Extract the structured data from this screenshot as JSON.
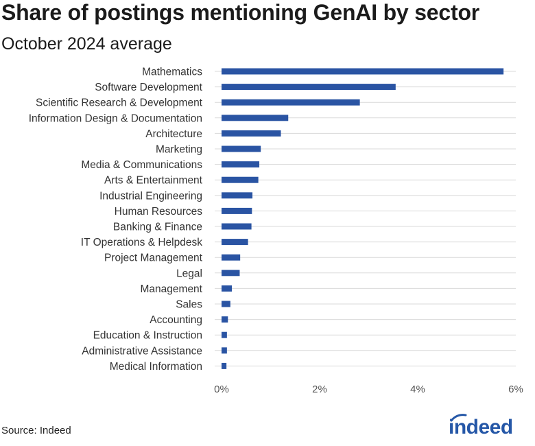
{
  "chart_data": {
    "type": "bar",
    "orientation": "horizontal",
    "title": "Share of postings mentioning GenAI by sector",
    "subtitle": "October 2024 average",
    "categories": [
      "Mathematics",
      "Software Development",
      "Scientific Research & Development",
      "Information Design & Documentation",
      "Architecture",
      "Marketing",
      "Media & Communications",
      "Arts & Entertainment",
      "Industrial Engineering",
      "Human Resources",
      "Banking & Finance",
      "IT Operations & Helpdesk",
      "Project Management",
      "Legal",
      "Management",
      "Sales",
      "Accounting",
      "Education & Instruction",
      "Administrative Assistance",
      "Medical Information"
    ],
    "values": [
      5.75,
      3.55,
      2.82,
      1.36,
      1.21,
      0.8,
      0.77,
      0.75,
      0.63,
      0.62,
      0.61,
      0.54,
      0.38,
      0.37,
      0.21,
      0.18,
      0.13,
      0.11,
      0.11,
      0.1
    ],
    "unit": "%",
    "xlim": [
      0,
      6
    ],
    "xticks": [
      0,
      2,
      4,
      6
    ],
    "xtick_labels": [
      "0%",
      "2%",
      "4%",
      "6%"
    ],
    "xlabel": "",
    "ylabel": "",
    "grid": "horizontal lines per category",
    "bar_color": "#2a54a3",
    "grid_color": "#d9d9d9"
  },
  "footer": {
    "source": "Source: Indeed",
    "logo_text": "indeed",
    "logo_color": "#2557a7"
  }
}
